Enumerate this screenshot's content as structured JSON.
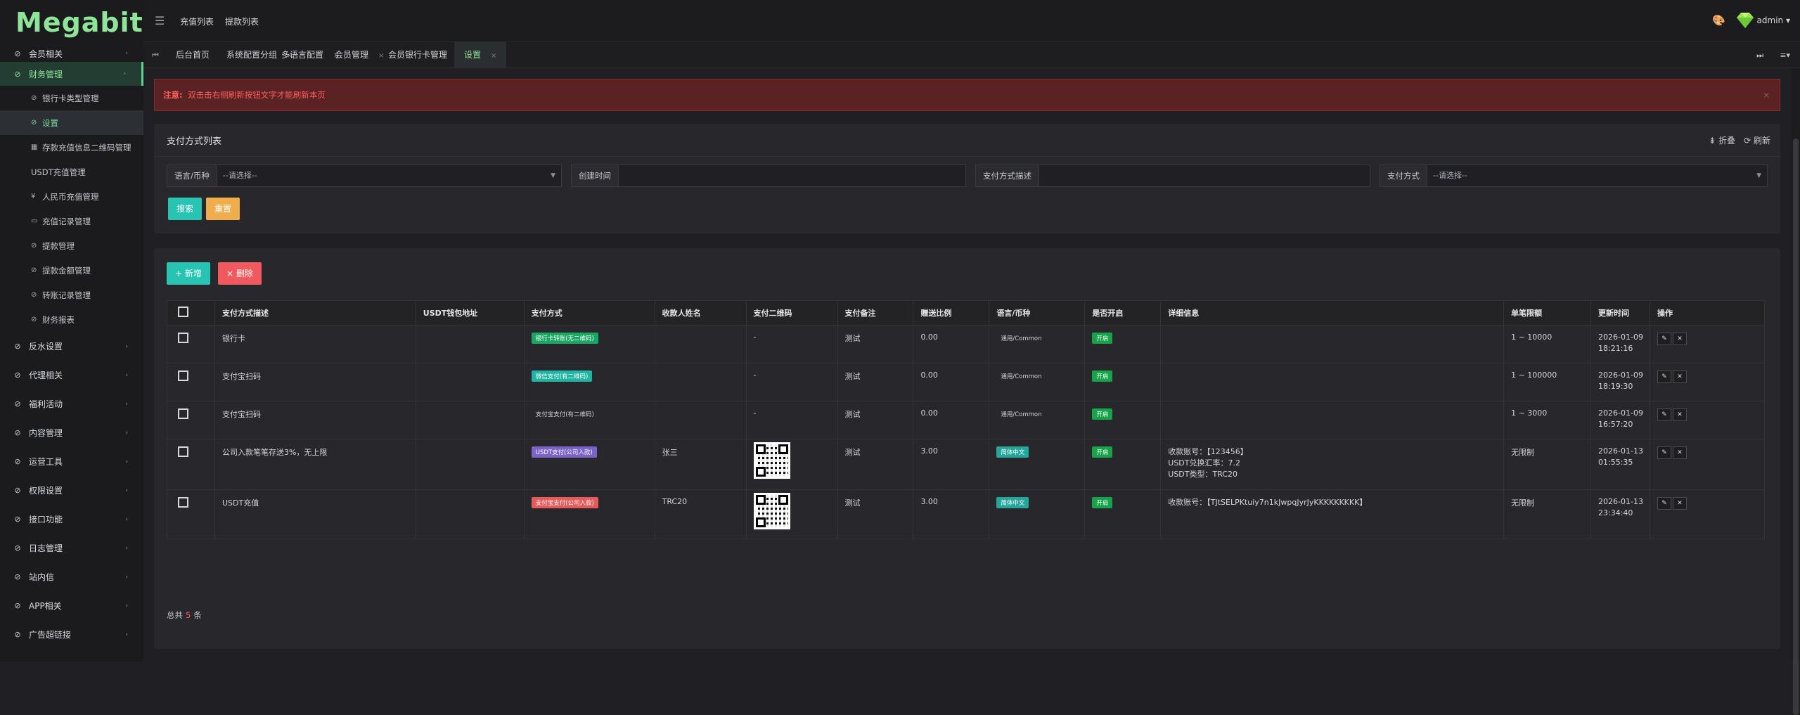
{
  "brand": {
    "logo": "Megabit",
    "logo_color": "#8ee59a"
  },
  "sidebar": {
    "items_top": [
      {
        "label": "会员相关",
        "icon": "link-icon"
      },
      {
        "label": "财务管理",
        "icon": "link-icon",
        "active": true
      }
    ],
    "sub_items": [
      {
        "label": "银行卡类型管理",
        "icon": "link-icon"
      },
      {
        "label": "设置",
        "icon": "link-icon",
        "active": true
      },
      {
        "label": "存款充值信息二维码管理",
        "icon": "qrcode-icon"
      },
      {
        "label": "USDT充值管理",
        "icon": ""
      },
      {
        "label": "人民币充值管理",
        "icon": "yen-icon"
      },
      {
        "label": "充值记录管理",
        "icon": "monitor-icon"
      },
      {
        "label": "提款管理",
        "icon": "link-icon"
      },
      {
        "label": "提款金额管理",
        "icon": "link-icon"
      },
      {
        "label": "转账记录管理",
        "icon": "link-icon"
      },
      {
        "label": "财务报表",
        "icon": "link-icon"
      }
    ],
    "items_bottom": [
      {
        "label": "反水设置"
      },
      {
        "label": "代理相关"
      },
      {
        "label": "福利活动"
      },
      {
        "label": "内容管理"
      },
      {
        "label": "运营工具"
      },
      {
        "label": "权限设置"
      },
      {
        "label": "接口功能"
      },
      {
        "label": "日志管理"
      },
      {
        "label": "站内信"
      },
      {
        "label": "APP相关"
      },
      {
        "label": "广告超链接"
      }
    ]
  },
  "topbar": {
    "links": [
      "充值列表",
      "提款列表"
    ],
    "user": "admin"
  },
  "tabs": [
    {
      "label": "后台首页",
      "closable": false
    },
    {
      "label": "系统配置分组",
      "closable": true
    },
    {
      "label": "多语言配置",
      "closable": true
    },
    {
      "label": "会员管理",
      "closable": true
    },
    {
      "label": "会员银行卡管理",
      "closable": true
    },
    {
      "label": "设置",
      "closable": true,
      "active": true
    }
  ],
  "alert": {
    "prefix": "注意:",
    "text": "双击击右侧刷新按钮文字才能刷新本页",
    "close": "×"
  },
  "filter": {
    "title": "支付方式列表",
    "fold": "折叠",
    "refresh": "刷新",
    "fields": [
      {
        "label": "语言/币种",
        "value": "--请选择--",
        "dropdown": true
      },
      {
        "label": "创建时间",
        "value": "",
        "dropdown": false
      },
      {
        "label": "支付方式描述",
        "value": "",
        "dropdown": false
      },
      {
        "label": "支付方式",
        "value": "--请选择--",
        "dropdown": true
      }
    ],
    "search_label": "搜索",
    "reset_label": "重置"
  },
  "list": {
    "add_label": "+ 新增",
    "delete_label": "× 删除",
    "columns": [
      "",
      "支付方式描述",
      "USDT钱包地址",
      "支付方式",
      "收款人姓名",
      "支付二维码",
      "支付备注",
      "赠送比例",
      "语言/币种",
      "是否开启",
      "详细信息",
      "单笔限额",
      "更新时间",
      "操作"
    ],
    "rows": [
      {
        "desc": "银行卡",
        "usdt": "",
        "method": "银行卡转账(无二维码)",
        "method_color": "green",
        "payee": "",
        "qr": "-",
        "remark": "测试",
        "ratio": "0.00",
        "lang": "通用/Common",
        "lang_style": "gray",
        "enabled": "开启",
        "detail": [],
        "limit": "1 ~ 10000",
        "updated_date": "2026-01-09",
        "updated_time": "18:21:16"
      },
      {
        "desc": "支付宝扫码",
        "usdt": "",
        "method": "微信支付(有二维码)",
        "method_color": "teal",
        "payee": "",
        "qr": "-",
        "remark": "测试",
        "ratio": "0.00",
        "lang": "通用/Common",
        "lang_style": "gray",
        "enabled": "开启",
        "detail": [],
        "limit": "1 ~ 100000",
        "updated_date": "2026-01-09",
        "updated_time": "18:19:30"
      },
      {
        "desc": "支付宝扫码",
        "usdt": "",
        "method": "支付宝支付(有二维码)",
        "method_color": "none",
        "payee": "",
        "qr": "-",
        "remark": "测试",
        "ratio": "0.00",
        "lang": "通用/Common",
        "lang_style": "gray",
        "enabled": "开启",
        "detail": [],
        "limit": "1 ~ 3000",
        "updated_date": "2026-01-09",
        "updated_time": "16:57:20"
      },
      {
        "desc": "公司入款笔笔存送3%，无上限",
        "usdt": "",
        "method": "USDT支付(公司入款)",
        "method_color": "purple",
        "payee": "张三",
        "qr": "qr",
        "remark": "测试",
        "ratio": "3.00",
        "lang": "简体中文",
        "lang_style": "teal",
        "enabled": "开启",
        "detail": [
          "收款账号：【123456】",
          "USDT兑换汇率：7.2",
          "USDT类型：TRC20"
        ],
        "limit": "无限制",
        "updated_date": "2026-01-13",
        "updated_time": "01:55:35"
      },
      {
        "desc": "USDT充值",
        "usdt": "",
        "method": "支付宝支付(公司入款)",
        "method_color": "red",
        "payee": "TRC20",
        "qr": "qr",
        "remark": "测试",
        "ratio": "3.00",
        "lang": "简体中文",
        "lang_style": "teal",
        "enabled": "开启",
        "detail": [
          "收款账号：【TJtSELPKtuiy7n1kJwpqJyrJyKKKKKKKKK】"
        ],
        "limit": "无限制",
        "updated_date": "2026-01-13",
        "updated_time": "23:34:40"
      }
    ],
    "total_prefix": "总共",
    "total_count": "5",
    "total_suffix": "条"
  }
}
